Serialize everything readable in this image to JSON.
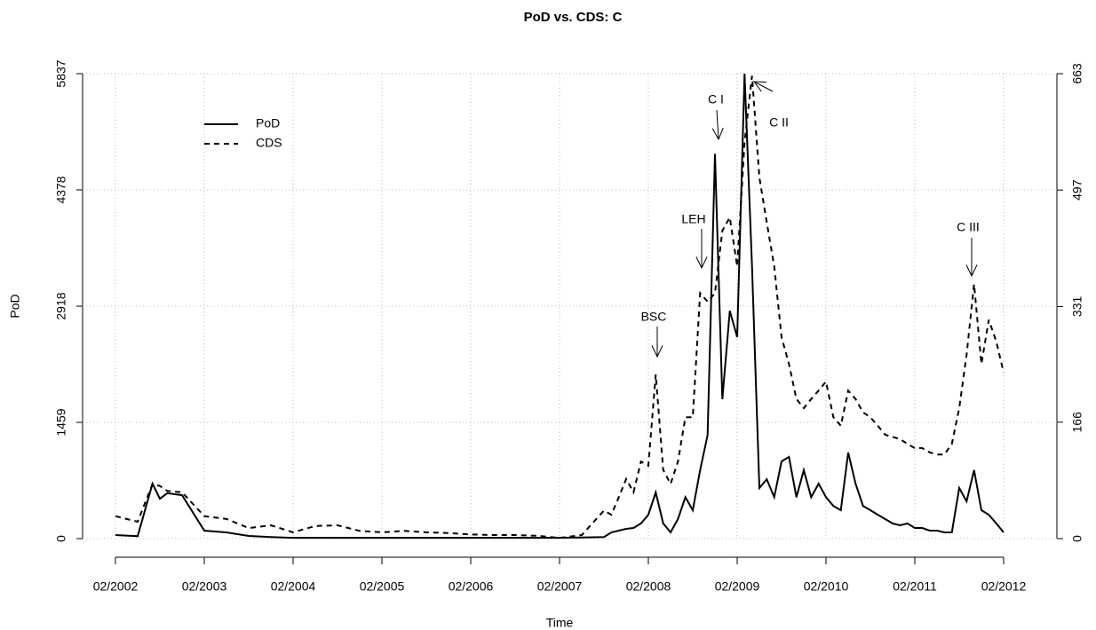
{
  "chart_data": {
    "type": "line",
    "title": "PoD vs. CDS: C",
    "x_label": "Time",
    "y_label": "PoD",
    "x": [
      "02/2002",
      "05/2002",
      "07/2002",
      "08/2002",
      "09/2002",
      "11/2002",
      "02/2003",
      "05/2003",
      "08/2003",
      "11/2003",
      "02/2004",
      "05/2004",
      "08/2004",
      "11/2004",
      "02/2005",
      "05/2005",
      "08/2005",
      "11/2005",
      "02/2006",
      "05/2006",
      "08/2006",
      "11/2006",
      "02/2007",
      "05/2007",
      "08/2007",
      "09/2007",
      "10/2007",
      "11/2007",
      "12/2007",
      "01/2008",
      "02/2008",
      "03/2008",
      "04/2008",
      "05/2008",
      "06/2008",
      "07/2008",
      "08/2008",
      "09/2008",
      "10/2008",
      "11/2008",
      "12/2008",
      "01/2009",
      "02/2009",
      "03/2009",
      "04/2009",
      "05/2009",
      "06/2009",
      "07/2009",
      "08/2009",
      "09/2009",
      "10/2009",
      "11/2009",
      "12/2009",
      "01/2010",
      "02/2010",
      "03/2010",
      "04/2010",
      "05/2010",
      "06/2010",
      "07/2010",
      "08/2010",
      "09/2010",
      "10/2010",
      "11/2010",
      "12/2010",
      "01/2011",
      "02/2011",
      "03/2011",
      "04/2011",
      "05/2011",
      "06/2011",
      "07/2011",
      "08/2011",
      "09/2011",
      "10/2011",
      "11/2011",
      "12/2011",
      "01/2012",
      "02/2012"
    ],
    "series": [
      {
        "name": "PoD",
        "color": "#000000",
        "line_style": "solid",
        "axis": "y",
        "values": [
          45,
          30,
          690,
          500,
          570,
          545,
          100,
          78,
          33,
          20,
          10,
          10,
          10,
          10,
          10,
          10,
          10,
          10,
          10,
          10,
          10,
          10,
          10,
          15,
          20,
          78,
          100,
          122,
          134,
          190,
          300,
          580,
          190,
          78,
          245,
          520,
          356,
          860,
          1300,
          4830,
          1750,
          2860,
          2530,
          5837,
          3420,
          635,
          745,
          520,
          970,
          1025,
          520,
          860,
          520,
          690,
          520,
          410,
          356,
          1080,
          690,
          410,
          356,
          300,
          245,
          190,
          167,
          190,
          134,
          134,
          100,
          100,
          78,
          78,
          635,
          468,
          860,
          356,
          300,
          190,
          78
        ]
      },
      {
        "name": "CDS",
        "color": "#000000",
        "line_style": "dashed",
        "axis": "y2",
        "values": [
          32,
          24,
          78,
          75,
          68,
          66,
          32,
          28,
          15,
          19,
          9,
          18,
          19,
          11,
          9,
          11,
          9,
          8,
          6,
          5,
          5,
          4,
          1,
          5,
          40,
          34,
          59,
          85,
          66,
          110,
          104,
          234,
          98,
          78,
          110,
          173,
          173,
          350,
          338,
          350,
          439,
          458,
          388,
          565,
          660,
          515,
          451,
          388,
          287,
          249,
          199,
          186,
          199,
          211,
          224,
          173,
          161,
          211,
          199,
          180,
          173,
          161,
          148,
          145,
          142,
          135,
          129,
          129,
          123,
          120,
          120,
          135,
          186,
          262,
          363,
          249,
          312,
          281,
          237
        ]
      }
    ],
    "xlim": [
      "02/2002",
      "02/2012"
    ],
    "xticks": [
      "02/2002",
      "02/2003",
      "02/2004",
      "02/2005",
      "02/2006",
      "02/2007",
      "02/2008",
      "02/2009",
      "02/2010",
      "02/2011",
      "02/2012"
    ],
    "ylim": [
      0,
      5837
    ],
    "yticks": [
      0,
      1459,
      2918,
      4378,
      5837
    ],
    "y2lim": [
      0,
      663
    ],
    "y2ticks": [
      0,
      166,
      331,
      497,
      663
    ],
    "grid": true,
    "legend": "top-left",
    "annotations": [
      {
        "text": "BSC"
      },
      {
        "text": "LEH"
      },
      {
        "text": "C I"
      },
      {
        "text": "C II"
      },
      {
        "text": "C III"
      }
    ]
  }
}
